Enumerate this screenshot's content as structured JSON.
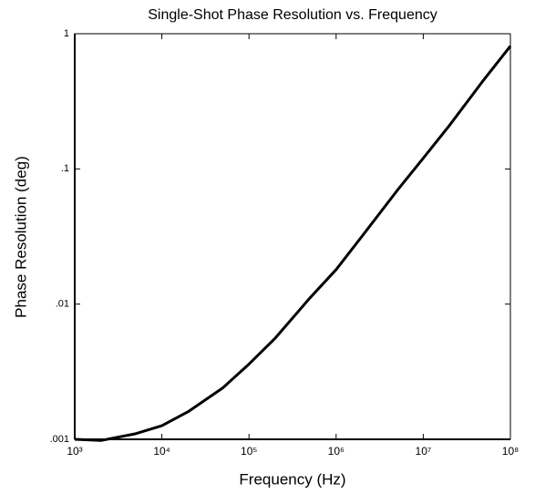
{
  "chart_data": {
    "type": "line",
    "title": "Single-Shot Phase Resolution vs. Frequency",
    "x_label": "Frequency (Hz)",
    "y_label": "Phase Resolution (deg)",
    "x_log": true,
    "y_log": true,
    "x": [
      1000,
      2000,
      5000,
      10000,
      20000,
      50000,
      100000,
      200000,
      500000,
      1000000,
      2000000,
      5000000,
      10000000,
      20000000,
      50000000,
      100000000
    ],
    "series": [
      {
        "name": "Phase Resolution",
        "color": "#000000",
        "values": [
          0.001,
          0.00098,
          0.0011,
          0.00126,
          0.0016,
          0.0024,
          0.0036,
          0.0056,
          0.0111,
          0.018,
          0.032,
          0.069,
          0.12,
          0.21,
          0.46,
          0.81
        ]
      }
    ],
    "xlim": [
      1000,
      100000000
    ],
    "ylim": [
      0.001,
      1
    ],
    "xticks": [
      {
        "value": 1000,
        "label": "10³"
      },
      {
        "value": 10000,
        "label": "10⁴"
      },
      {
        "value": 100000,
        "label": "10⁵"
      },
      {
        "value": 1000000,
        "label": "10⁶"
      },
      {
        "value": 10000000,
        "label": "10⁷"
      },
      {
        "value": 100000000,
        "label": "10⁸"
      }
    ],
    "yticks": [
      {
        "value": 0.001,
        "label": ".001"
      },
      {
        "value": 0.01,
        "label": ".01"
      },
      {
        "value": 0.1,
        "label": ".1"
      },
      1
    ]
  }
}
